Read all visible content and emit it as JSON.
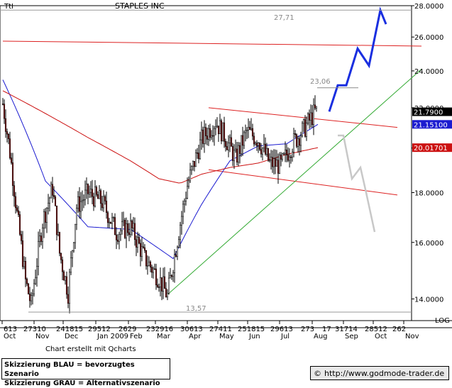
{
  "header": {
    "symbol": "TtI",
    "title": "STAPLES INC"
  },
  "colors": {
    "candle_up": "#ffffff",
    "candle_down": "#8b1a1a",
    "candle_outline": "#000000",
    "ma_short": "#1b1bd0",
    "ma_long": "#cc1111",
    "trend_red": "#dd2222",
    "trend_green": "#33aa33",
    "scenario_blue": "#1a2fe0",
    "scenario_grey": "#c8c8c8",
    "price_current_bg": "#000000",
    "price_ma_short_bg": "#1b1bd0",
    "price_ma_long_bg": "#cc1111"
  },
  "chart_data": {
    "type": "candlestick",
    "title": "STAPLES INC",
    "y_scale": "log",
    "ylim": [
      13.3,
      28.0
    ],
    "y_ticks": [
      "28.0000",
      "26.0000",
      "24.0000",
      "22.0000",
      "20.0000",
      "18.0000",
      "16.0000",
      "14.0000"
    ],
    "y_tick_values": [
      28,
      26,
      24,
      22,
      20,
      18,
      16,
      14
    ],
    "x_tick_labels_top": [
      "613",
      "27310",
      "241815",
      "29512",
      "2629",
      "232916",
      "30613",
      "27411",
      "251815",
      "29613",
      "273",
      "17",
      "31714",
      "28512",
      "262"
    ],
    "x_month_labels": [
      "Oct",
      "Nov",
      "Dec",
      "Jan 2009",
      "Feb",
      "Mar",
      "Apr",
      "May",
      "Jun",
      "Jul",
      "Aug",
      "Sep",
      "Oct",
      "Nov"
    ],
    "scale_label": "LOG",
    "annotations": {
      "high_label": "27,71",
      "high_value": 27.71,
      "mid_label": "23,06",
      "mid_value": 23.06,
      "low_label": "13,57",
      "low_value": 13.57
    },
    "price_labels": {
      "current": "21.7900",
      "ma_short": "21.15100",
      "ma_long": "20.01701"
    },
    "series": [
      {
        "kind": "ohlc",
        "days": 222,
        "start": "2008-10-01",
        "end": "2009-08-28",
        "close_path": [
          [
            0,
            22.2
          ],
          [
            5,
            19.8
          ],
          [
            10,
            17.1
          ],
          [
            16,
            14.6
          ],
          [
            20,
            13.8
          ],
          [
            28,
            16.8
          ],
          [
            35,
            18.2
          ],
          [
            40,
            15.6
          ],
          [
            46,
            14.2
          ],
          [
            52,
            17.4
          ],
          [
            60,
            18.0
          ],
          [
            70,
            17.6
          ],
          [
            80,
            16.4
          ],
          [
            90,
            16.6
          ],
          [
            100,
            15.4
          ],
          [
            110,
            14.7
          ],
          [
            116,
            14.1
          ],
          [
            122,
            15.8
          ],
          [
            130,
            18.3
          ],
          [
            140,
            20.4
          ],
          [
            150,
            21.3
          ],
          [
            156,
            20.6
          ],
          [
            164,
            19.5
          ],
          [
            172,
            20.8
          ],
          [
            180,
            20.4
          ],
          [
            188,
            19.3
          ],
          [
            196,
            19.2
          ],
          [
            204,
            20.2
          ],
          [
            212,
            20.9
          ],
          [
            220,
            21.79
          ]
        ]
      },
      {
        "kind": "ma_short",
        "values_path": [
          [
            0,
            23.5
          ],
          [
            30,
            18.5
          ],
          [
            60,
            16.6
          ],
          [
            90,
            16.5
          ],
          [
            120,
            15.4
          ],
          [
            140,
            17.5
          ],
          [
            160,
            19.4
          ],
          [
            180,
            20.1
          ],
          [
            200,
            20.2
          ],
          [
            222,
            21.15
          ]
        ]
      },
      {
        "kind": "ma_long",
        "values_path": [
          [
            0,
            22.9
          ],
          [
            30,
            21.7
          ],
          [
            60,
            20.5
          ],
          [
            90,
            19.4
          ],
          [
            110,
            18.6
          ],
          [
            125,
            18.4
          ],
          [
            140,
            18.8
          ],
          [
            160,
            19.1
          ],
          [
            180,
            19.3
          ],
          [
            200,
            19.7
          ],
          [
            222,
            20.02
          ]
        ]
      }
    ],
    "trendlines": [
      {
        "name": "red-upper",
        "p1": [
          0,
          25.75
        ],
        "p2": [
          295,
          25.45
        ]
      },
      {
        "name": "red-channel-top",
        "p1": [
          145,
          22.0
        ],
        "p2": [
          278,
          21.0
        ]
      },
      {
        "name": "red-channel-bottom",
        "p1": [
          145,
          19.0
        ],
        "p2": [
          278,
          17.9
        ]
      },
      {
        "name": "green-support",
        "p1": [
          115,
          14.1
        ],
        "p2": [
          295,
          24.1
        ]
      }
    ],
    "scenarios": {
      "blue": [
        [
          230,
          21.8
        ],
        [
          236,
          23.2
        ],
        [
          242,
          23.2
        ],
        [
          250,
          25.3
        ],
        [
          258,
          24.3
        ],
        [
          266,
          27.7
        ],
        [
          270,
          26.8
        ]
      ],
      "grey": [
        [
          236,
          20.6
        ],
        [
          240,
          20.6
        ],
        [
          246,
          18.6
        ],
        [
          252,
          19.1
        ],
        [
          256,
          18.0
        ],
        [
          262,
          16.4
        ]
      ]
    }
  },
  "footer": {
    "credit": "Chart erstellt mit Qcharts",
    "legend_blue": "Skizzierung BLAU = bevorzugtes Szenario",
    "legend_grey": "Skizzierung GRAU = Alternativszenario",
    "copyright_symbol": "©",
    "source": "http://www.godmode-trader.de"
  }
}
